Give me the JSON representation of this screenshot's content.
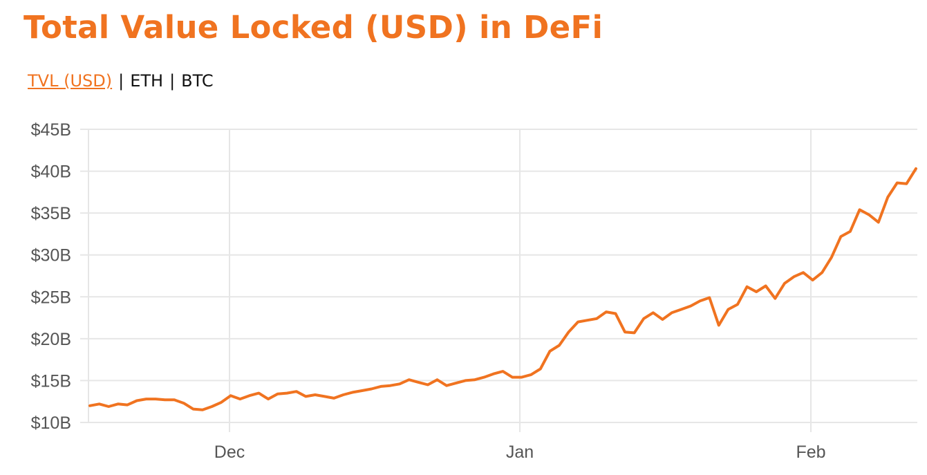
{
  "header": {
    "title": "Total Value Locked (USD) in DeFi"
  },
  "tabs": [
    {
      "label": "TVL (USD)",
      "active": true
    },
    {
      "label": "ETH",
      "active": false
    },
    {
      "label": "BTC",
      "active": false
    }
  ],
  "colors": {
    "accent": "#f07320",
    "grid": "#e6e6e6",
    "axis_text": "#555555"
  },
  "chart_data": {
    "type": "line",
    "title": "",
    "xlabel": "",
    "ylabel": "",
    "x_ticks": [
      "Dec",
      "Jan",
      "Feb"
    ],
    "y_ticks": [
      "$10B",
      "$15B",
      "$20B",
      "$25B",
      "$30B",
      "$35B",
      "$40B",
      "$45B"
    ],
    "ylim": [
      10,
      45
    ],
    "y_unit": "$B",
    "grid": true,
    "series": [
      {
        "values": [
          12.0,
          12.2,
          11.9,
          12.2,
          12.1,
          12.6,
          12.8,
          12.8,
          12.7,
          12.7,
          12.3,
          11.6,
          11.5,
          11.9,
          12.4,
          13.2,
          12.8,
          13.2,
          13.5,
          12.8,
          13.4,
          13.5,
          13.7,
          13.1,
          13.3,
          13.1,
          12.9,
          13.3,
          13.6,
          13.8,
          14.0,
          14.3,
          14.4,
          14.6,
          15.1,
          14.8,
          14.5,
          15.1,
          14.4,
          14.7,
          15.0,
          15.1,
          15.4,
          15.8,
          16.1,
          15.4,
          15.4,
          15.7,
          16.4,
          18.5,
          19.2,
          20.8,
          22.0,
          22.2,
          22.4,
          23.2,
          23.0,
          20.8,
          20.7,
          22.4,
          23.1,
          22.3,
          23.1,
          23.5,
          23.9,
          24.5,
          24.9,
          21.6,
          23.5,
          24.1,
          26.2,
          25.6,
          26.3,
          24.8,
          26.6,
          27.4,
          27.9,
          27.0,
          27.9,
          29.7,
          32.2,
          32.8,
          35.4,
          34.8,
          33.9,
          36.9,
          38.6,
          38.5,
          40.3
        ]
      }
    ]
  }
}
